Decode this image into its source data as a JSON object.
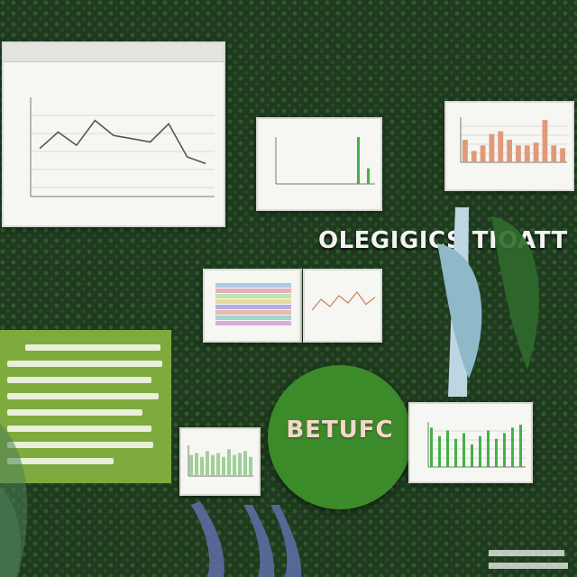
{
  "headline": "OLEGIGICS TIOATT",
  "circle_word": "BETUFC",
  "colors": {
    "background": "#1f3a1f",
    "panel_green": "#7faa3e",
    "circle_green": "#3c8b2b",
    "line_gray": "#555555",
    "bar_salmon": "#e09a78",
    "bar_green": "#45b048"
  },
  "chart_data": [
    {
      "type": "line",
      "x": [
        1,
        2,
        3,
        4,
        5,
        6,
        7,
        8,
        9,
        10
      ],
      "series": [
        {
          "values": [
            58,
            78,
            62,
            92,
            74,
            70,
            66,
            88,
            48,
            40
          ]
        }
      ],
      "ylim": [
        0,
        120
      ]
    },
    {
      "type": "bar",
      "categories": [
        "1",
        "2",
        "3",
        "4",
        "5",
        "6",
        "7",
        "8",
        "9",
        "10"
      ],
      "values": [
        0,
        0,
        0,
        0,
        0,
        0,
        0,
        0,
        60,
        20
      ]
    },
    {
      "type": "bar",
      "categories": [
        "1",
        "2",
        "3",
        "4",
        "5",
        "6",
        "7",
        "8",
        "9",
        "10",
        "11",
        "12"
      ],
      "values": [
        40,
        20,
        30,
        50,
        55,
        40,
        30,
        30,
        35,
        75,
        30,
        25
      ]
    },
    {
      "type": "line",
      "x": [
        1,
        2,
        3,
        4,
        5,
        6,
        7,
        8
      ],
      "series": [
        {
          "values": [
            20,
            35,
            25,
            40,
            30,
            45,
            28,
            38
          ]
        }
      ]
    },
    {
      "type": "bar",
      "categories": [
        "1",
        "2",
        "3",
        "4",
        "5",
        "6",
        "7",
        "8",
        "9",
        "10",
        "11",
        "12"
      ],
      "values": [
        55,
        60,
        50,
        65,
        55,
        60,
        50,
        70,
        55,
        60,
        65,
        50
      ]
    },
    {
      "type": "bar",
      "categories": [
        "1",
        "2",
        "3",
        "4",
        "5",
        "6",
        "7",
        "8",
        "9",
        "10",
        "11",
        "12"
      ],
      "values": [
        70,
        55,
        65,
        50,
        60,
        40,
        55,
        65,
        50,
        60,
        70,
        75
      ]
    }
  ]
}
